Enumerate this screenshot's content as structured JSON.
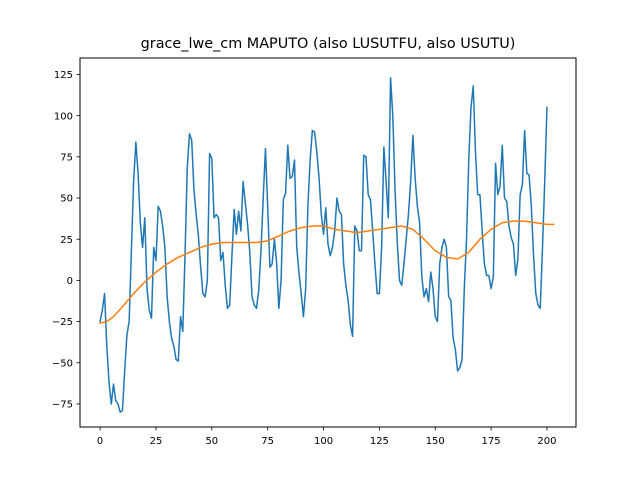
{
  "chart_data": {
    "type": "line",
    "title": "grace_lwe_cm MAPUTO (also LUSUTFU, also USUTU)",
    "xlabel": "",
    "ylabel": "",
    "xlim": [
      -9,
      213
    ],
    "ylim": [
      -89,
      135
    ],
    "xticks": [
      0,
      25,
      50,
      75,
      100,
      125,
      150,
      175,
      200
    ],
    "yticks": [
      -75,
      -50,
      -25,
      0,
      25,
      50,
      75,
      100,
      125
    ],
    "grid": false,
    "legend": "none",
    "series": [
      {
        "color": "#1f77b4",
        "points": [
          [
            0,
            -25
          ],
          [
            1,
            -18
          ],
          [
            2,
            -8
          ],
          [
            3,
            -40
          ],
          [
            4,
            -62
          ],
          [
            5,
            -75
          ],
          [
            6,
            -63
          ],
          [
            7,
            -73
          ],
          [
            8,
            -75
          ],
          [
            9,
            -80
          ],
          [
            10,
            -79
          ],
          [
            11,
            -55
          ],
          [
            12,
            -33
          ],
          [
            13,
            -25
          ],
          [
            14,
            18
          ],
          [
            15,
            60
          ],
          [
            16,
            84
          ],
          [
            17,
            65
          ],
          [
            18,
            35
          ],
          [
            19,
            20
          ],
          [
            20,
            38
          ],
          [
            21,
            -5
          ],
          [
            22,
            -18
          ],
          [
            23,
            -23
          ],
          [
            24,
            20
          ],
          [
            25,
            12
          ],
          [
            26,
            45
          ],
          [
            27,
            42
          ],
          [
            28,
            33
          ],
          [
            29,
            20
          ],
          [
            30,
            -10
          ],
          [
            31,
            -25
          ],
          [
            32,
            -35
          ],
          [
            33,
            -40
          ],
          [
            34,
            -48
          ],
          [
            35,
            -49
          ],
          [
            36,
            -22
          ],
          [
            37,
            -31
          ],
          [
            38,
            15
          ],
          [
            39,
            68
          ],
          [
            40,
            89
          ],
          [
            41,
            85
          ],
          [
            42,
            55
          ],
          [
            43,
            40
          ],
          [
            44,
            27
          ],
          [
            45,
            8
          ],
          [
            46,
            -8
          ],
          [
            47,
            -10
          ],
          [
            48,
            0
          ],
          [
            49,
            77
          ],
          [
            50,
            74
          ],
          [
            51,
            38
          ],
          [
            52,
            40
          ],
          [
            53,
            38
          ],
          [
            54,
            12
          ],
          [
            55,
            17
          ],
          [
            56,
            -3
          ],
          [
            57,
            -17
          ],
          [
            58,
            -15
          ],
          [
            59,
            15
          ],
          [
            60,
            43
          ],
          [
            61,
            28
          ],
          [
            62,
            42
          ],
          [
            63,
            30
          ],
          [
            64,
            60
          ],
          [
            65,
            47
          ],
          [
            66,
            34
          ],
          [
            67,
            17
          ],
          [
            68,
            -10
          ],
          [
            69,
            -15
          ],
          [
            70,
            -17
          ],
          [
            71,
            -6
          ],
          [
            72,
            18
          ],
          [
            73,
            50
          ],
          [
            74,
            80
          ],
          [
            75,
            45
          ],
          [
            76,
            8
          ],
          [
            77,
            10
          ],
          [
            78,
            25
          ],
          [
            79,
            11
          ],
          [
            80,
            -17
          ],
          [
            81,
            0
          ],
          [
            82,
            49
          ],
          [
            83,
            53
          ],
          [
            84,
            82
          ],
          [
            85,
            62
          ],
          [
            86,
            63
          ],
          [
            87,
            73
          ],
          [
            88,
            20
          ],
          [
            89,
            5
          ],
          [
            90,
            -8
          ],
          [
            91,
            -22
          ],
          [
            92,
            -5
          ],
          [
            93,
            45
          ],
          [
            94,
            73
          ],
          [
            95,
            91
          ],
          [
            96,
            90
          ],
          [
            97,
            78
          ],
          [
            98,
            62
          ],
          [
            99,
            40
          ],
          [
            100,
            28
          ],
          [
            101,
            44
          ],
          [
            102,
            22
          ],
          [
            103,
            15
          ],
          [
            104,
            20
          ],
          [
            105,
            30
          ],
          [
            106,
            50
          ],
          [
            107,
            42
          ],
          [
            108,
            40
          ],
          [
            109,
            10
          ],
          [
            110,
            -3
          ],
          [
            111,
            -12
          ],
          [
            112,
            -27
          ],
          [
            113,
            -34
          ],
          [
            114,
            33
          ],
          [
            115,
            30
          ],
          [
            116,
            18
          ],
          [
            117,
            18
          ],
          [
            118,
            76
          ],
          [
            119,
            75
          ],
          [
            120,
            52
          ],
          [
            121,
            49
          ],
          [
            122,
            30
          ],
          [
            123,
            10
          ],
          [
            124,
            -8
          ],
          [
            125,
            -8
          ],
          [
            126,
            20
          ],
          [
            127,
            81
          ],
          [
            128,
            60
          ],
          [
            129,
            38
          ],
          [
            130,
            123
          ],
          [
            131,
            100
          ],
          [
            132,
            55
          ],
          [
            133,
            23
          ],
          [
            134,
            0
          ],
          [
            135,
            -3
          ],
          [
            136,
            10
          ],
          [
            137,
            25
          ],
          [
            138,
            40
          ],
          [
            139,
            60
          ],
          [
            140,
            88
          ],
          [
            141,
            62
          ],
          [
            142,
            45
          ],
          [
            143,
            35
          ],
          [
            144,
            2
          ],
          [
            145,
            -10
          ],
          [
            146,
            -5
          ],
          [
            147,
            -13
          ],
          [
            148,
            5
          ],
          [
            149,
            -5
          ],
          [
            150,
            -22
          ],
          [
            151,
            -25
          ],
          [
            152,
            10
          ],
          [
            153,
            20
          ],
          [
            154,
            25
          ],
          [
            155,
            20
          ],
          [
            156,
            -10
          ],
          [
            157,
            -12
          ],
          [
            158,
            -35
          ],
          [
            159,
            -42
          ],
          [
            160,
            -55
          ],
          [
            161,
            -53
          ],
          [
            162,
            -48
          ],
          [
            163,
            -5
          ],
          [
            164,
            25
          ],
          [
            165,
            73
          ],
          [
            166,
            105
          ],
          [
            167,
            118
          ],
          [
            168,
            78
          ],
          [
            169,
            52
          ],
          [
            170,
            52
          ],
          [
            171,
            30
          ],
          [
            172,
            10
          ],
          [
            173,
            3
          ],
          [
            174,
            3
          ],
          [
            175,
            -5
          ],
          [
            176,
            2
          ],
          [
            177,
            71
          ],
          [
            178,
            52
          ],
          [
            179,
            57
          ],
          [
            180,
            82
          ],
          [
            181,
            50
          ],
          [
            182,
            48
          ],
          [
            183,
            33
          ],
          [
            184,
            26
          ],
          [
            185,
            22
          ],
          [
            186,
            3
          ],
          [
            187,
            13
          ],
          [
            188,
            52
          ],
          [
            189,
            58
          ],
          [
            190,
            91
          ],
          [
            191,
            65
          ],
          [
            192,
            64
          ],
          [
            193,
            45
          ],
          [
            194,
            15
          ],
          [
            195,
            -8
          ],
          [
            196,
            -15
          ],
          [
            197,
            -17
          ],
          [
            198,
            20
          ],
          [
            199,
            60
          ],
          [
            200,
            105
          ]
        ]
      },
      {
        "color": "#ff7f0e",
        "points": [
          [
            0,
            -26
          ],
          [
            3,
            -25
          ],
          [
            6,
            -22
          ],
          [
            10,
            -16
          ],
          [
            15,
            -8
          ],
          [
            20,
            -1
          ],
          [
            25,
            5
          ],
          [
            30,
            10
          ],
          [
            35,
            14
          ],
          [
            40,
            17
          ],
          [
            45,
            20
          ],
          [
            50,
            22
          ],
          [
            55,
            23
          ],
          [
            60,
            23
          ],
          [
            65,
            23
          ],
          [
            70,
            23
          ],
          [
            75,
            24
          ],
          [
            80,
            27
          ],
          [
            85,
            30
          ],
          [
            90,
            32
          ],
          [
            95,
            33
          ],
          [
            100,
            33
          ],
          [
            105,
            31
          ],
          [
            110,
            30
          ],
          [
            115,
            29
          ],
          [
            120,
            30
          ],
          [
            125,
            31
          ],
          [
            130,
            32
          ],
          [
            135,
            33
          ],
          [
            140,
            31
          ],
          [
            145,
            25
          ],
          [
            150,
            18
          ],
          [
            155,
            14
          ],
          [
            160,
            13
          ],
          [
            165,
            17
          ],
          [
            170,
            25
          ],
          [
            175,
            31
          ],
          [
            180,
            35
          ],
          [
            185,
            36
          ],
          [
            190,
            36
          ],
          [
            195,
            35
          ],
          [
            200,
            34
          ],
          [
            203,
            34
          ]
        ]
      }
    ]
  }
}
